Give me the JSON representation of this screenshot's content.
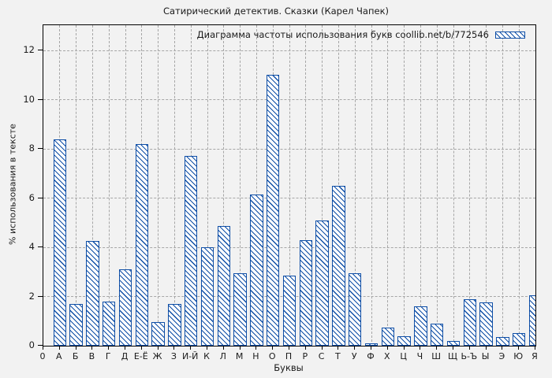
{
  "chart_data": {
    "type": "bar",
    "title": "Сатирический детектив. Сказки (Карел Чапек)",
    "xlabel": "Буквы",
    "ylabel": "% использования в тексте",
    "legend": "Диаграмма частоты использования букв coollib.net/b/772546",
    "origin_tick_label": "0",
    "categories": [
      "А",
      "Б",
      "В",
      "Г",
      "Д",
      "Е-Ё",
      "Ж",
      "З",
      "И-Й",
      "К",
      "Л",
      "М",
      "Н",
      "О",
      "П",
      "Р",
      "С",
      "Т",
      "У",
      "Ф",
      "Х",
      "Ц",
      "Ч",
      "Ш",
      "Щ",
      "Ь-Ъ",
      "Ы",
      "Э",
      "Ю",
      "Я"
    ],
    "values": [
      8.4,
      1.7,
      4.25,
      1.8,
      3.1,
      8.2,
      0.95,
      1.7,
      7.7,
      4.0,
      4.85,
      2.95,
      6.15,
      11.0,
      2.85,
      4.3,
      5.1,
      6.5,
      2.95,
      0.1,
      0.75,
      0.4,
      1.6,
      0.9,
      0.2,
      1.9,
      1.75,
      0.35,
      0.5,
      2.05
    ],
    "yticks": [
      0,
      2,
      4,
      6,
      8,
      10,
      12
    ],
    "ylim": [
      0,
      13
    ],
    "grid": "dashed",
    "legend_position": "inside-top-right",
    "hatch": "diagonal-backslash",
    "colors": {
      "bar_border": "#0e4ea6",
      "bar_fill": "#ffffff",
      "grid": "#a6a6a6",
      "frame": "#000000",
      "background": "#f2f2f2",
      "text": "#1a1a1a"
    }
  }
}
